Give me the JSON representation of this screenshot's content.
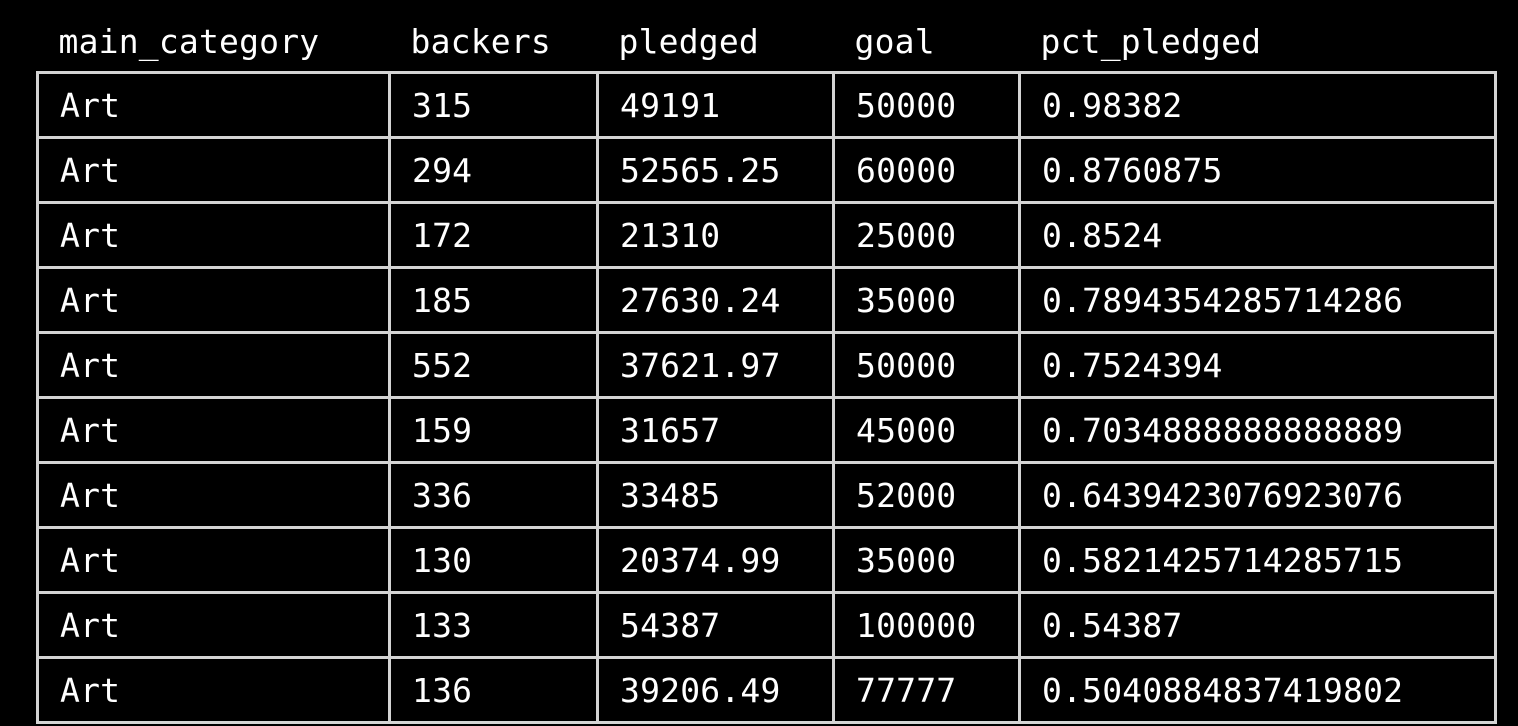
{
  "table": {
    "columns": [
      "main_category",
      "backers",
      "pledged",
      "goal",
      "pct_pledged"
    ],
    "rows": [
      [
        "Art",
        "315",
        "49191",
        "50000",
        "0.98382"
      ],
      [
        "Art",
        "294",
        "52565.25",
        "60000",
        "0.8760875"
      ],
      [
        "Art",
        "172",
        "21310",
        "25000",
        "0.8524"
      ],
      [
        "Art",
        "185",
        "27630.24",
        "35000",
        "0.7894354285714286"
      ],
      [
        "Art",
        "552",
        "37621.97",
        "50000",
        "0.7524394"
      ],
      [
        "Art",
        "159",
        "31657",
        "45000",
        "0.7034888888888889"
      ],
      [
        "Art",
        "336",
        "33485",
        "52000",
        "0.6439423076923076"
      ],
      [
        "Art",
        "130",
        "20374.99",
        "35000",
        "0.5821425714285715"
      ],
      [
        "Art",
        "133",
        "54387",
        "100000",
        "0.54387"
      ],
      [
        "Art",
        "136",
        "39206.49",
        "77777",
        "0.5040884837419802"
      ]
    ]
  },
  "colors": {
    "background": "#000000",
    "text": "#ffffff",
    "grid": "#d4d4d4"
  }
}
